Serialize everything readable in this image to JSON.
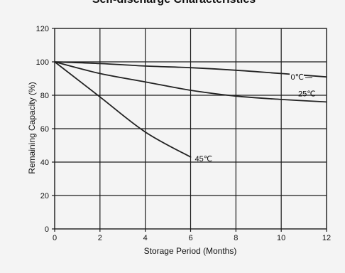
{
  "chart_data": {
    "type": "line",
    "title": "Self-discharge Characteristics",
    "xlabel": "Storage Period (Months)",
    "ylabel": "Remaining Capacity (%)",
    "xlim": [
      0,
      12
    ],
    "ylim": [
      0,
      120
    ],
    "x_ticks": [
      0,
      2,
      4,
      6,
      8,
      10,
      12
    ],
    "y_ticks": [
      0,
      20,
      40,
      60,
      80,
      100,
      120
    ],
    "grid": true,
    "legend": "none (series labelled directly on lines)",
    "series": [
      {
        "name": "0℃",
        "x": [
          0,
          2,
          4,
          6,
          8,
          10,
          12
        ],
        "y": [
          100,
          99,
          97.5,
          96.5,
          95,
          93,
          91
        ]
      },
      {
        "name": "25℃",
        "x": [
          0,
          2,
          4,
          6,
          8,
          10,
          12
        ],
        "y": [
          100,
          93,
          88,
          83,
          79.5,
          77.5,
          76
        ]
      },
      {
        "name": "45℃",
        "x": [
          0,
          2,
          4,
          6
        ],
        "y": [
          100,
          79,
          58,
          43
        ]
      }
    ],
    "colors": {
      "line": "#222222",
      "grid": "#1a1a1a",
      "background": "#f4f4f4"
    }
  }
}
